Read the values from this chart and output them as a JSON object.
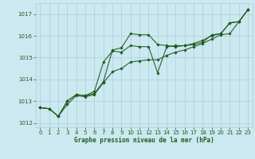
{
  "title": "Graphe pression niveau de la mer (hPa)",
  "background_color": "#cce8f0",
  "grid_color": "#aacdd8",
  "line_color": "#1e5c1e",
  "xlim": [
    -0.5,
    23.5
  ],
  "ylim": [
    1011.8,
    1017.5
  ],
  "yticks": [
    1012,
    1013,
    1014,
    1015,
    1016,
    1017
  ],
  "xticks": [
    0,
    1,
    2,
    3,
    4,
    5,
    6,
    7,
    8,
    9,
    10,
    11,
    12,
    13,
    14,
    15,
    16,
    17,
    18,
    19,
    20,
    21,
    22,
    23
  ],
  "series": [
    [
      1012.7,
      1012.65,
      1012.3,
      1013.0,
      1013.3,
      1013.25,
      1013.35,
      1013.9,
      1015.35,
      1015.45,
      1016.1,
      1016.05,
      1016.05,
      1015.6,
      1015.55,
      1015.5,
      1015.55,
      1015.6,
      1015.7,
      1016.05,
      1016.1,
      1016.6,
      1016.65,
      1017.2
    ],
    [
      1012.7,
      1012.65,
      1012.3,
      1013.0,
      1013.3,
      1013.25,
      1013.45,
      1014.8,
      1015.3,
      1015.25,
      1015.55,
      1015.5,
      1015.5,
      1014.3,
      1015.5,
      1015.55,
      1015.55,
      1015.65,
      1015.8,
      1016.0,
      1016.1,
      1016.6,
      1016.65,
      1017.2
    ],
    [
      1012.7,
      1012.65,
      1012.3,
      1012.85,
      1013.25,
      1013.2,
      1013.3,
      1013.85,
      1014.35,
      1014.5,
      1014.8,
      1014.85,
      1014.9,
      1014.9,
      1015.1,
      1015.25,
      1015.35,
      1015.5,
      1015.65,
      1015.85,
      1016.05,
      1016.1,
      1016.65,
      1017.2
    ]
  ]
}
